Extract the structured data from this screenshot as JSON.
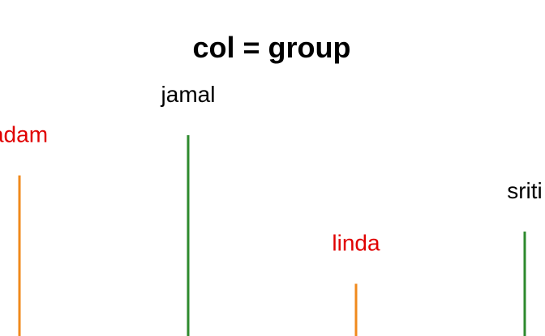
{
  "chart_data": {
    "type": "bar",
    "title": "col = group",
    "categories": [
      "adam",
      "jamal",
      "linda",
      "sriti"
    ],
    "values": [
      200,
      250,
      65,
      130
    ],
    "groups": [
      "g1",
      "g2",
      "g1",
      "g2"
    ],
    "group_colors": {
      "g1": "#f08a1c",
      "g2": "#2e8a2e"
    },
    "label_colors": [
      "#e00000",
      "#000000",
      "#e00000",
      "#000000"
    ],
    "ylim": [
      0,
      250
    ],
    "grid": false,
    "legend": "none"
  }
}
